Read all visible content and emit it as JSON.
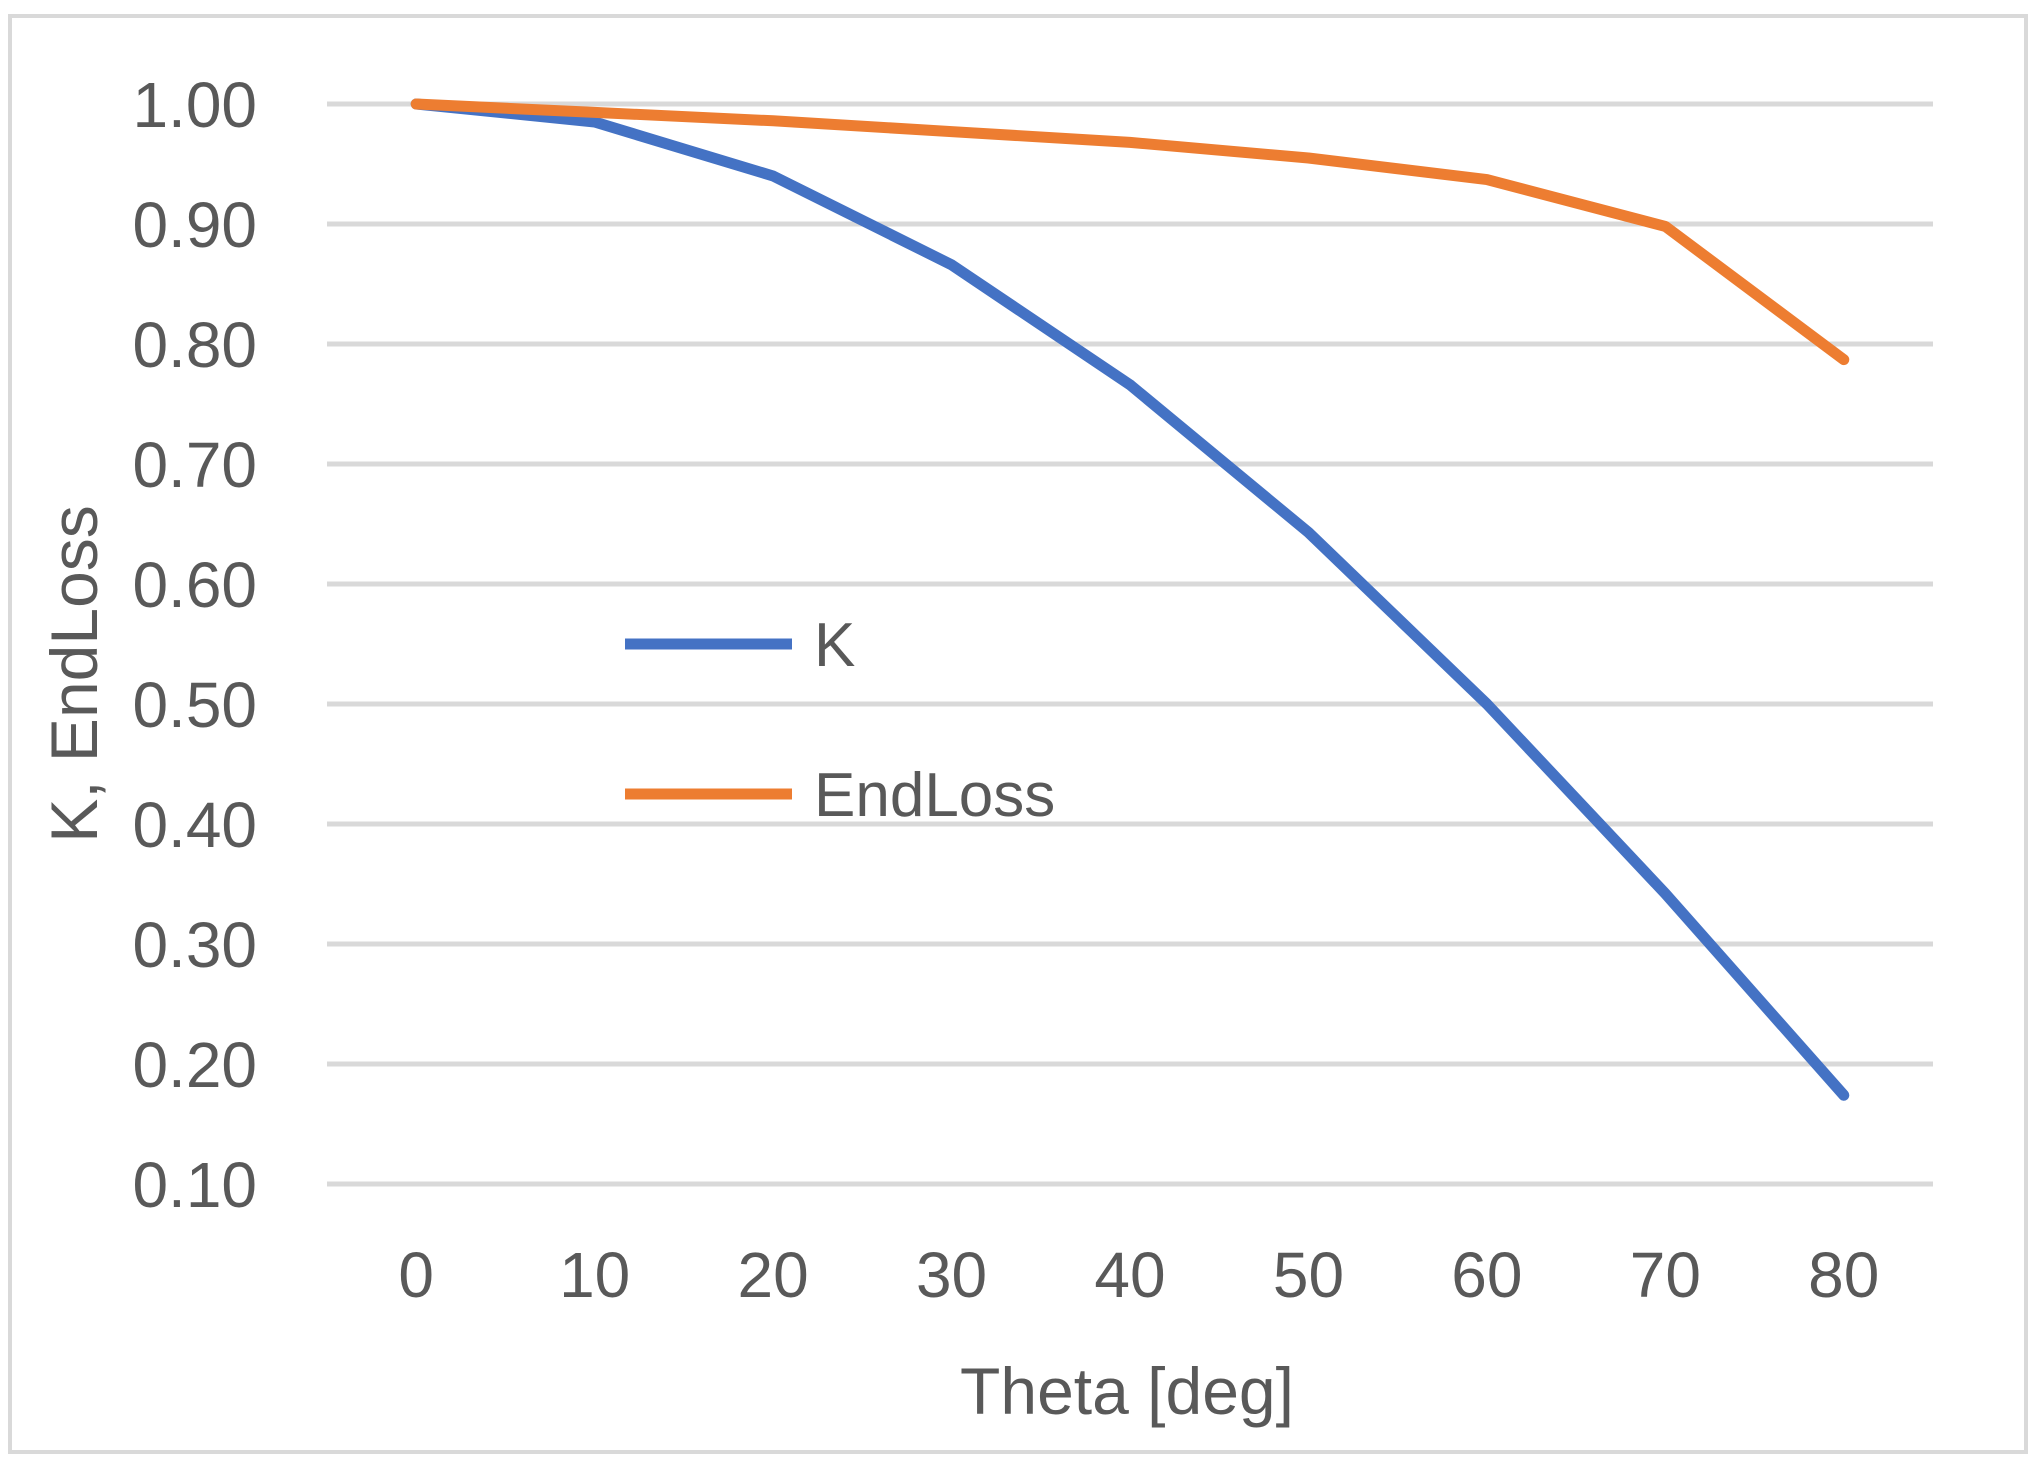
{
  "chart_data": {
    "type": "line",
    "title": "",
    "xlabel": "Theta [deg]",
    "ylabel": "K, EndLoss",
    "categories": [
      0,
      10,
      20,
      30,
      40,
      50,
      60,
      70,
      80
    ],
    "x_tick_labels": [
      "0",
      "10",
      "20",
      "30",
      "40",
      "50",
      "60",
      "70",
      "80"
    ],
    "y_tick_labels": [
      "1.00",
      "0.90",
      "0.80",
      "0.70",
      "0.60",
      "0.50",
      "0.40",
      "0.30",
      "0.20",
      "0.10"
    ],
    "series": [
      {
        "name": "K",
        "color": "#4472C4",
        "values": [
          1.0,
          0.985,
          0.94,
          0.866,
          0.766,
          0.643,
          0.5,
          0.342,
          0.174
        ]
      },
      {
        "name": "EndLoss",
        "color": "#ED7D31",
        "values": [
          1.0,
          0.993,
          0.986,
          0.977,
          0.968,
          0.955,
          0.937,
          0.898,
          0.787
        ]
      }
    ],
    "ylim": [
      0.05,
      1.05
    ],
    "y_gridline_step": 0.1,
    "grid": true,
    "legend_position": "inside-center-left",
    "colors": {
      "grid": "#D9D9D9",
      "border": "#D9D9D9",
      "text": "#595959",
      "background": "#FFFFFF"
    }
  }
}
